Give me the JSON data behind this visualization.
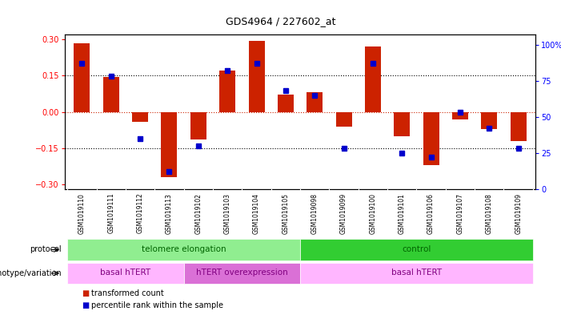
{
  "title": "GDS4964 / 227602_at",
  "samples": [
    "GSM1019110",
    "GSM1019111",
    "GSM1019112",
    "GSM1019113",
    "GSM1019102",
    "GSM1019103",
    "GSM1019104",
    "GSM1019105",
    "GSM1019098",
    "GSM1019099",
    "GSM1019100",
    "GSM1019101",
    "GSM1019106",
    "GSM1019107",
    "GSM1019108",
    "GSM1019109"
  ],
  "red_values": [
    0.285,
    0.145,
    -0.04,
    -0.27,
    -0.115,
    0.17,
    0.295,
    0.07,
    0.08,
    -0.06,
    0.27,
    -0.1,
    -0.22,
    -0.03,
    -0.07,
    -0.12
  ],
  "blue_values_pct": [
    87,
    78,
    35,
    12,
    30,
    82,
    87,
    68,
    65,
    28,
    87,
    25,
    22,
    53,
    42,
    28
  ],
  "ylim_left": [
    -0.32,
    0.32
  ],
  "ylim_right": [
    0,
    107
  ],
  "yticks_left": [
    -0.3,
    -0.15,
    0.0,
    0.15,
    0.3
  ],
  "yticks_right": [
    0,
    25,
    50,
    75,
    100
  ],
  "ytick_labels_right": [
    "0",
    "25",
    "50",
    "75",
    "100%"
  ],
  "hline_dotted_values": [
    0.15,
    -0.15
  ],
  "hline_red_value": 0.0,
  "protocol_groups": [
    {
      "label": "telomere elongation",
      "start": 0,
      "end": 8,
      "color": "#90EE90"
    },
    {
      "label": "control",
      "start": 8,
      "end": 16,
      "color": "#32CD32"
    }
  ],
  "genotype_groups": [
    {
      "label": "basal hTERT",
      "start": 0,
      "end": 4,
      "color": "#FFB6FF"
    },
    {
      "label": "hTERT overexpression",
      "start": 4,
      "end": 8,
      "color": "#DA70D6"
    },
    {
      "label": "basal hTERT",
      "start": 8,
      "end": 16,
      "color": "#FFB6FF"
    }
  ],
  "bar_width": 0.55,
  "red_color": "#CC2200",
  "blue_color": "#0000CC",
  "bg_color": "#FFFFFF",
  "plot_bg": "#FFFFFF",
  "label_row1_bg": "#C8C8C8",
  "legend_red_label": "transformed count",
  "legend_blue_label": "percentile rank within the sample"
}
